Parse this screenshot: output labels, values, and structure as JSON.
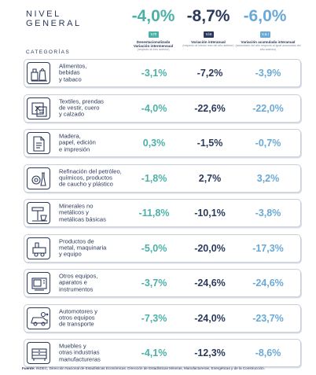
{
  "header": {
    "title_line1": "NIVEL",
    "title_line2": "GENERAL",
    "categories_title": "CATEGORÍAS",
    "columns": [
      {
        "value": "-4,0%",
        "badge": "v.m",
        "label": "Desestacionalizada",
        "sublabel": "Variación intermensual",
        "note": "(respecto al mes anterior)",
        "color": "#4bb1a8"
      },
      {
        "value": "-8,7%",
        "badge": "v.ia",
        "label": "Variación interanual",
        "sublabel": "",
        "note": "(respecto al mismo mes del año anterior)",
        "color": "#2b3a5c"
      },
      {
        "value": "-6,0%",
        "badge": "v.a.i",
        "label": "Variación acumulada interanual",
        "sublabel": "",
        "note": "(acumulado del año respecto al igual acumulado del año anterior)",
        "color": "#6aa9d6"
      }
    ]
  },
  "chart_data": {
    "type": "table",
    "columns": [
      "v.m",
      "v.ia",
      "v.a.i"
    ],
    "rows": [
      {
        "category": "Alimentos, bebidas y tabaco",
        "lines": [
          "Alimentos,",
          "bebidas",
          "y tabaco"
        ],
        "icon": "food-icon",
        "values": [
          "-3,1%",
          "-7,2%",
          "-3,9%"
        ]
      },
      {
        "category": "Textiles, prendas de vestir, cuero y calzado",
        "lines": [
          "Textiles, prendas",
          "de vestir, cuero",
          "y calzado"
        ],
        "icon": "textile-icon",
        "values": [
          "-4,0%",
          "-22,6%",
          "-22,0%"
        ]
      },
      {
        "category": "Madera, papel, edición e impresión",
        "lines": [
          "Madera,",
          "papel, edición",
          "e impresión"
        ],
        "icon": "paper-icon",
        "values": [
          "0,3%",
          "-1,5%",
          "-0,7%"
        ]
      },
      {
        "category": "Refinación del petróleo, químicos, productos de caucho y plástico",
        "lines": [
          "Refinación del petróleo,",
          "químicos, productos",
          "de caucho y plástico"
        ],
        "icon": "chemical-icon",
        "values": [
          "-1,8%",
          "2,7%",
          "3,2%"
        ]
      },
      {
        "category": "Minerales no metálicos y metálicas básicas",
        "lines": [
          "Minerales no",
          "metálicos y",
          "metálicas básicas"
        ],
        "icon": "mineral-icon",
        "values": [
          "-11,8%",
          "-10,1%",
          "-3,8%"
        ]
      },
      {
        "category": "Productos de metal, maquinaria y equipo",
        "lines": [
          "Productos de",
          "metal, maquinaria",
          "y equipo"
        ],
        "icon": "machinery-icon",
        "values": [
          "-5,0%",
          "-20,0%",
          "-17,3%"
        ]
      },
      {
        "category": "Otros equipos, aparatos e instrumentos",
        "lines": [
          "Otros equipos,",
          "aparatos e",
          "instrumentos"
        ],
        "icon": "appliance-icon",
        "values": [
          "-3,7%",
          "-24,6%",
          "-24,6%"
        ]
      },
      {
        "category": "Automotores y otros equipos de transporte",
        "lines": [
          "Automotores y",
          "otros equipos",
          "de transporte"
        ],
        "icon": "vehicle-icon",
        "values": [
          "-7,3%",
          "-24,0%",
          "-23,7%"
        ]
      },
      {
        "category": "Muebles y otras industrias manufactureras",
        "lines": [
          "Muebles y",
          "otras industrias",
          "manufactureras"
        ],
        "icon": "furniture-icon",
        "values": [
          "-4,1%",
          "-12,3%",
          "-8,6%"
        ]
      }
    ]
  },
  "footer": {
    "source_label": "Fuente:",
    "source_text": " INDEC, Dirección Nacional de Estadísticas Económicas. Dirección de Estadísticas Mineras, Manufactureras, Energéticas y de la Construcción."
  }
}
